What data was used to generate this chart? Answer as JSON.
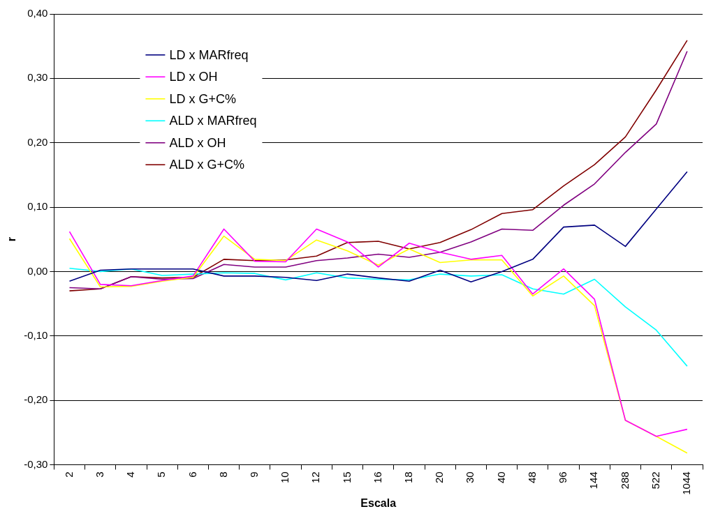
{
  "chart_data": {
    "type": "line",
    "xlabel": "Escala",
    "ylabel": "r",
    "categories": [
      "2",
      "3",
      "4",
      "5",
      "6",
      "8",
      "9",
      "10",
      "12",
      "15",
      "16",
      "18",
      "20",
      "30",
      "40",
      "48",
      "96",
      "144",
      "288",
      "522",
      "1044"
    ],
    "series": [
      {
        "name": "LD x MARfreq",
        "color": "#000080",
        "values": [
          -0.015,
          0.002,
          0.004,
          0.004,
          0.004,
          -0.007,
          -0.007,
          -0.009,
          -0.014,
          -0.004,
          -0.01,
          -0.015,
          0.002,
          -0.016,
          0.0,
          0.019,
          0.069,
          0.072,
          0.039,
          0.097,
          0.155
        ]
      },
      {
        "name": "LD x OH",
        "color": "#ff00ff",
        "values": [
          0.062,
          -0.02,
          -0.022,
          -0.014,
          -0.007,
          0.066,
          0.016,
          0.015,
          0.066,
          0.046,
          0.007,
          0.044,
          0.03,
          0.019,
          0.025,
          -0.035,
          0.004,
          -0.043,
          -0.231,
          -0.256,
          -0.245
        ]
      },
      {
        "name": "LD x G+C%",
        "color": "#ffff00",
        "values": [
          0.051,
          -0.024,
          -0.023,
          -0.015,
          -0.009,
          0.055,
          0.019,
          0.017,
          0.049,
          0.032,
          0.01,
          0.035,
          0.014,
          0.018,
          0.018,
          -0.038,
          -0.007,
          -0.053,
          -0.231,
          -0.256,
          -0.282
        ]
      },
      {
        "name": "ALD x MARfreq",
        "color": "#00ffff",
        "values": [
          0.005,
          0.0,
          0.004,
          -0.006,
          -0.004,
          -0.002,
          -0.003,
          -0.013,
          -0.002,
          -0.01,
          -0.012,
          -0.013,
          -0.004,
          -0.007,
          -0.005,
          -0.027,
          -0.035,
          -0.012,
          -0.055,
          -0.091,
          -0.147
        ]
      },
      {
        "name": "ALD x OH",
        "color": "#800080",
        "values": [
          -0.025,
          -0.027,
          -0.008,
          -0.012,
          -0.011,
          0.011,
          0.007,
          0.007,
          0.017,
          0.021,
          0.027,
          0.022,
          0.03,
          0.046,
          0.066,
          0.064,
          0.103,
          0.136,
          0.185,
          0.229,
          0.342
        ]
      },
      {
        "name": "ALD x G+C%",
        "color": "#800000",
        "values": [
          -0.03,
          -0.027,
          -0.008,
          -0.01,
          -0.009,
          0.019,
          0.017,
          0.018,
          0.024,
          0.045,
          0.047,
          0.035,
          0.045,
          0.065,
          0.09,
          0.096,
          0.133,
          0.166,
          0.209,
          0.282,
          0.359
        ]
      }
    ],
    "ylim": [
      -0.3,
      0.4
    ],
    "yticks": [
      {
        "value": -0.3,
        "label": "-0,30"
      },
      {
        "value": -0.2,
        "label": "-0,20"
      },
      {
        "value": -0.1,
        "label": "-0,10"
      },
      {
        "value": 0,
        "label": "0,00"
      },
      {
        "value": 0.1,
        "label": "0,10"
      },
      {
        "value": 0.2,
        "label": "0,20"
      },
      {
        "value": 0.3,
        "label": "0,30"
      },
      {
        "value": 0.4,
        "label": "0,40"
      }
    ],
    "grid": "y",
    "legend": "top left",
    "marker": "none",
    "line_style": "solid"
  }
}
